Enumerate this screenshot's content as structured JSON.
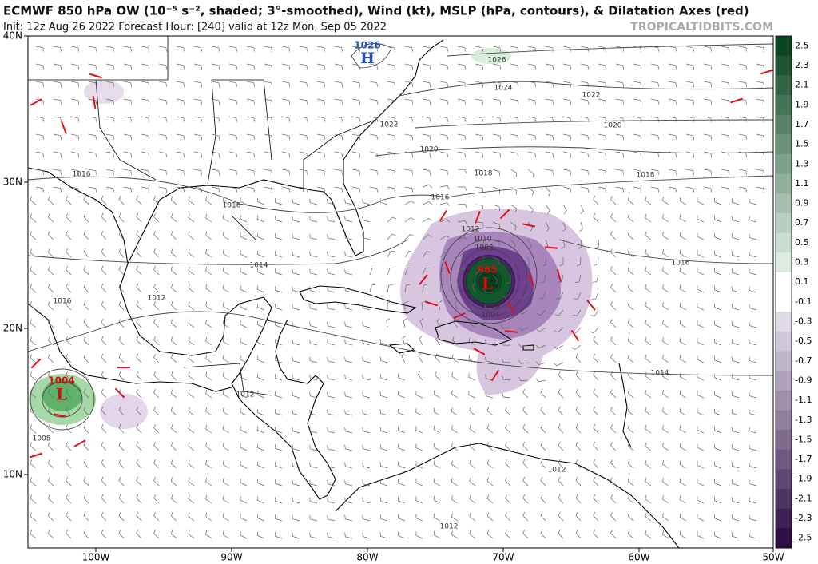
{
  "header": {
    "title": "ECMWF 850 hPa OW (10⁻⁵ s⁻², shaded; 3°-smoothed), Wind (kt), MSLP (hPa, contours), & Dilatation Axes (red)",
    "subtitle": "Init: 12z Aug 26 2022   Forecast Hour: [240]   valid at 12z Mon, Sep 05 2022",
    "watermark": "TROPICALTIDBITS.COM"
  },
  "map": {
    "lat_labels": [
      "40N",
      "30N",
      "20N",
      "10N"
    ],
    "lon_labels": [
      "100W",
      "90W",
      "80W",
      "70W",
      "60W",
      "50W"
    ],
    "isobar_labels": [
      "1026",
      "1024",
      "1022",
      "1022",
      "1020",
      "1020",
      "1018",
      "1018",
      "1016",
      "1016",
      "1016",
      "1012",
      "1010",
      "1008",
      "1014",
      "1016",
      "1012",
      "1016",
      "1008",
      "1004",
      "1014",
      "1012",
      "1008",
      "1012",
      "1012"
    ],
    "highs": [
      {
        "pressure": "1026",
        "symbol": "H"
      }
    ],
    "lows": [
      {
        "pressure": "965",
        "symbol": "L"
      },
      {
        "pressure": "1004",
        "symbol": "L"
      }
    ]
  },
  "colorbar": {
    "labels": [
      "2.5",
      "2.3",
      "2.1",
      "1.9",
      "1.7",
      "1.5",
      "1.3",
      "1.1",
      "0.9",
      "0.7",
      "0.5",
      "0.3",
      "0.1",
      "-0.1",
      "-0.3",
      "-0.5",
      "-0.7",
      "-0.9",
      "-1.1",
      "-1.3",
      "-1.5",
      "-1.7",
      "-1.9",
      "-2.1",
      "-2.3",
      "-2.5"
    ]
  }
}
